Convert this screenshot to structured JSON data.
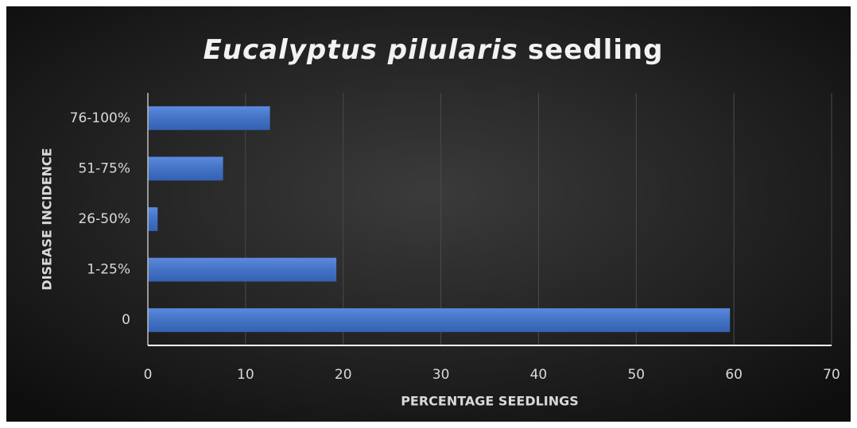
{
  "chart_data": {
    "type": "bar",
    "orientation": "horizontal",
    "title": {
      "italic": "Eucalyptus pilularis",
      "regular": "seedling"
    },
    "x_label": "PERCENTAGE SEEDLINGS",
    "y_label": "DISEASE INCIDENCE",
    "categories": [
      "0",
      "1-25%",
      "26-50%",
      "51-75%",
      "76-100%"
    ],
    "values": [
      59.6,
      19.3,
      1.0,
      7.7,
      12.5
    ],
    "color": "#4472c4",
    "xlim": [
      0,
      70
    ],
    "xticks": [
      0,
      10,
      20,
      30,
      40,
      50,
      60,
      70
    ],
    "grid": true
  }
}
